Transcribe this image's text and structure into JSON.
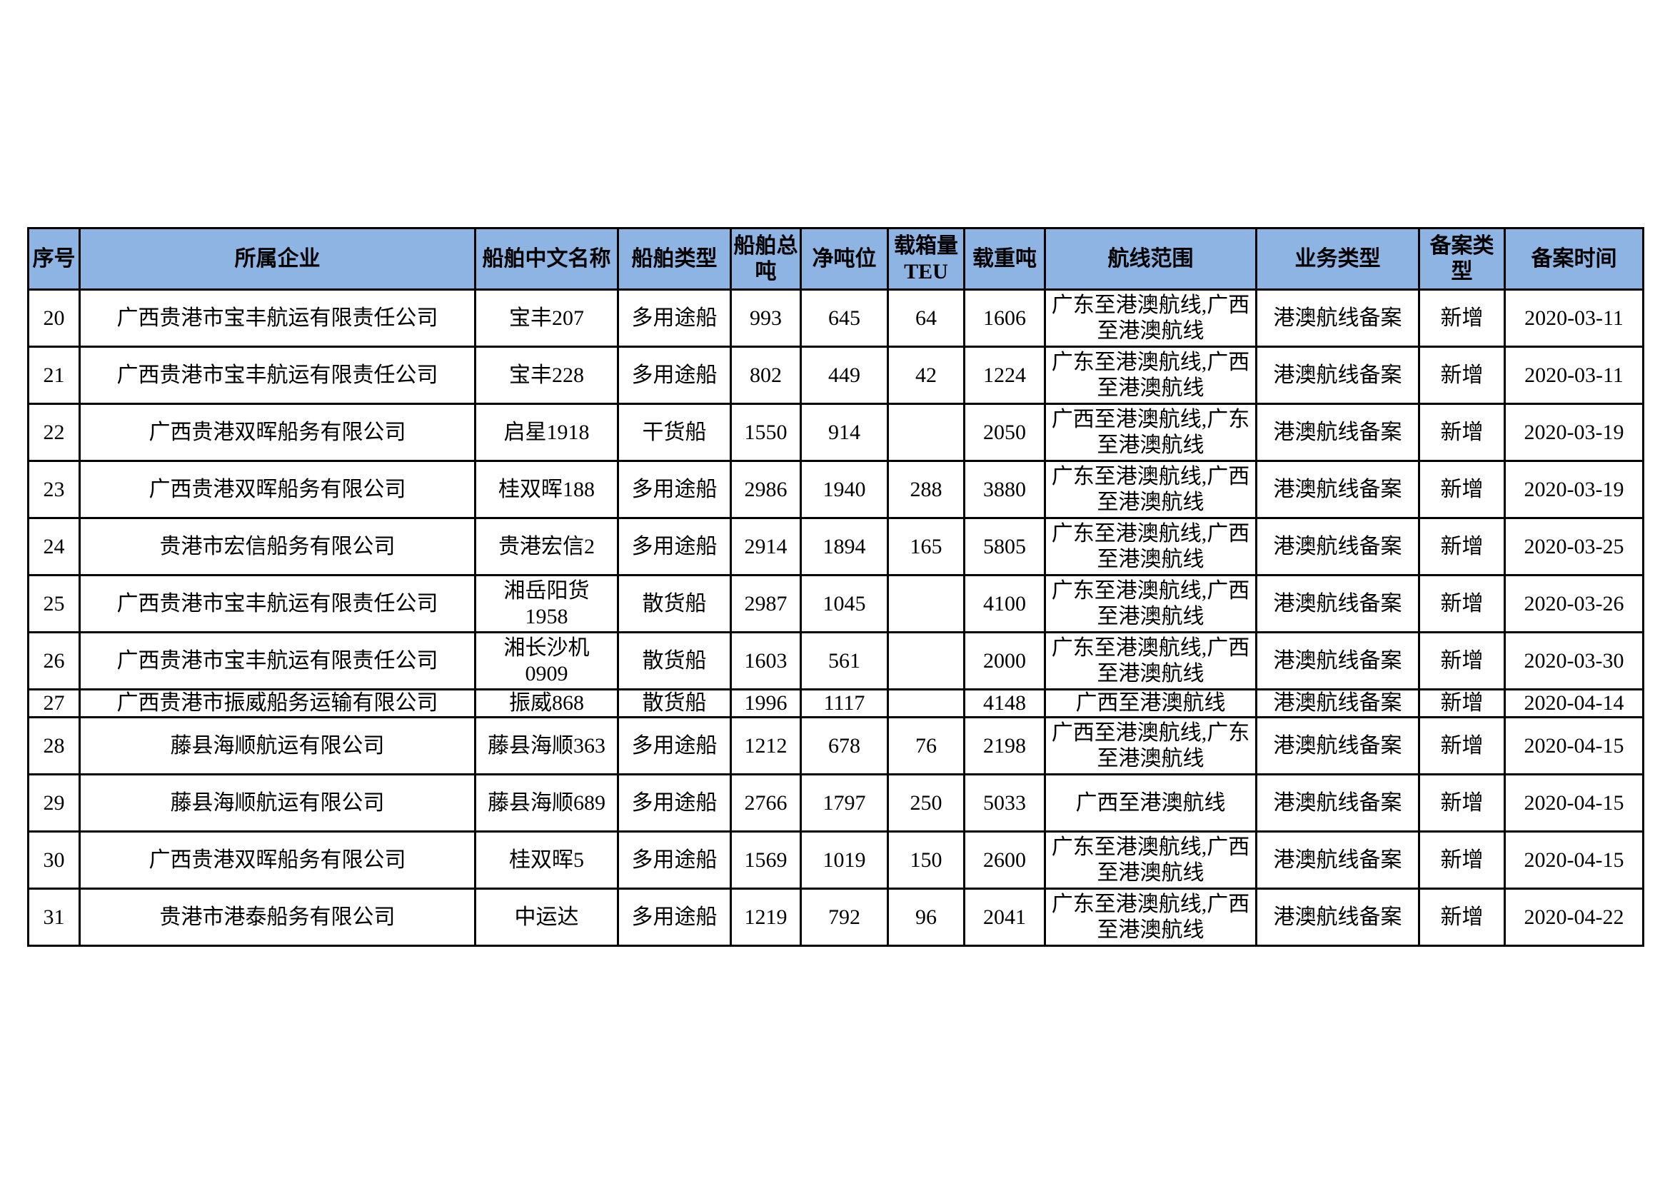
{
  "colors": {
    "header_bg": "#8DB4E2",
    "border": "#000000",
    "page_bg": "#FFFFFF",
    "text": "#000000"
  },
  "table": {
    "columns": [
      {
        "key": "seq",
        "label": "序号"
      },
      {
        "key": "company",
        "label": "所属企业"
      },
      {
        "key": "ship_name",
        "label": "船舶中文名称"
      },
      {
        "key": "ship_type",
        "label": "船舶类型"
      },
      {
        "key": "gross_tonnage",
        "label": "船舶总吨"
      },
      {
        "key": "net_tonnage",
        "label": "净吨位"
      },
      {
        "key": "teu",
        "label": "载箱量TEU"
      },
      {
        "key": "deadweight",
        "label": "载重吨"
      },
      {
        "key": "route",
        "label": "航线范围"
      },
      {
        "key": "business_type",
        "label": "业务类型"
      },
      {
        "key": "record_type",
        "label": "备案类型"
      },
      {
        "key": "record_date",
        "label": "备案时间"
      }
    ],
    "rows": [
      [
        "20",
        "广西贵港市宝丰航运有限责任公司",
        "宝丰207",
        "多用途船",
        "993",
        "645",
        "64",
        "1606",
        "广东至港澳航线,广西至港澳航线",
        "港澳航线备案",
        "新增",
        "2020-03-11"
      ],
      [
        "21",
        "广西贵港市宝丰航运有限责任公司",
        "宝丰228",
        "多用途船",
        "802",
        "449",
        "42",
        "1224",
        "广东至港澳航线,广西至港澳航线",
        "港澳航线备案",
        "新增",
        "2020-03-11"
      ],
      [
        "22",
        "广西贵港双晖船务有限公司",
        "启星1918",
        "干货船",
        "1550",
        "914",
        "",
        "2050",
        "广西至港澳航线,广东至港澳航线",
        "港澳航线备案",
        "新增",
        "2020-03-19"
      ],
      [
        "23",
        "广西贵港双晖船务有限公司",
        "桂双晖188",
        "多用途船",
        "2986",
        "1940",
        "288",
        "3880",
        "广东至港澳航线,广西至港澳航线",
        "港澳航线备案",
        "新增",
        "2020-03-19"
      ],
      [
        "24",
        "贵港市宏信船务有限公司",
        "贵港宏信2",
        "多用途船",
        "2914",
        "1894",
        "165",
        "5805",
        "广东至港澳航线,广西至港澳航线",
        "港澳航线备案",
        "新增",
        "2020-03-25"
      ],
      [
        "25",
        "广西贵港市宝丰航运有限责任公司",
        "湘岳阳货1958",
        "散货船",
        "2987",
        "1045",
        "",
        "4100",
        "广东至港澳航线,广西至港澳航线",
        "港澳航线备案",
        "新增",
        "2020-03-26"
      ],
      [
        "26",
        "广西贵港市宝丰航运有限责任公司",
        "湘长沙机0909",
        "散货船",
        "1603",
        "561",
        "",
        "2000",
        "广东至港澳航线,广西至港澳航线",
        "港澳航线备案",
        "新增",
        "2020-03-30"
      ],
      [
        "27",
        "广西贵港市振威船务运输有限公司",
        "振威868",
        "散货船",
        "1996",
        "1117",
        "",
        "4148",
        "广西至港澳航线",
        "港澳航线备案",
        "新增",
        "2020-04-14"
      ],
      [
        "28",
        "藤县海顺航运有限公司",
        "藤县海顺363",
        "多用途船",
        "1212",
        "678",
        "76",
        "2198",
        "广西至港澳航线,广东至港澳航线",
        "港澳航线备案",
        "新增",
        "2020-04-15"
      ],
      [
        "29",
        "藤县海顺航运有限公司",
        "藤县海顺689",
        "多用途船",
        "2766",
        "1797",
        "250",
        "5033",
        "广西至港澳航线",
        "港澳航线备案",
        "新增",
        "2020-04-15"
      ],
      [
        "30",
        "广西贵港双晖船务有限公司",
        "桂双晖5",
        "多用途船",
        "1569",
        "1019",
        "150",
        "2600",
        "广东至港澳航线,广西至港澳航线",
        "港澳航线备案",
        "新增",
        "2020-04-15"
      ],
      [
        "31",
        "贵港市港泰船务有限公司",
        "中运达",
        "多用途船",
        "1219",
        "792",
        "96",
        "2041",
        "广东至港澳航线,广西至港澳航线",
        "港澳航线备案",
        "新增",
        "2020-04-22"
      ]
    ]
  }
}
